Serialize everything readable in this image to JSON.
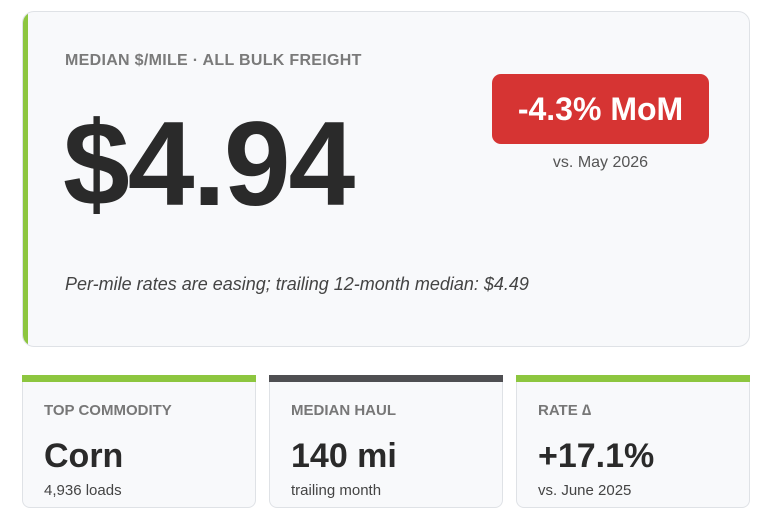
{
  "summary": {
    "label": "MEDIAN $/MILE · ALL BULK FREIGHT",
    "value": "$4.94",
    "badge": "-4.3% MoM",
    "badge_note": "vs. May 2026",
    "note": "Per-mile rates are easing; trailing 12-month median: $4.49"
  },
  "cards": [
    {
      "label": "TOP COMMODITY",
      "value": "Corn",
      "note": "4,936 loads"
    },
    {
      "label": "MEDIAN HAUL",
      "value": "140 mi",
      "note": "trailing month"
    },
    {
      "label": "RATE ∆",
      "value": "+17.1%",
      "note": "vs. June 2025"
    }
  ]
}
